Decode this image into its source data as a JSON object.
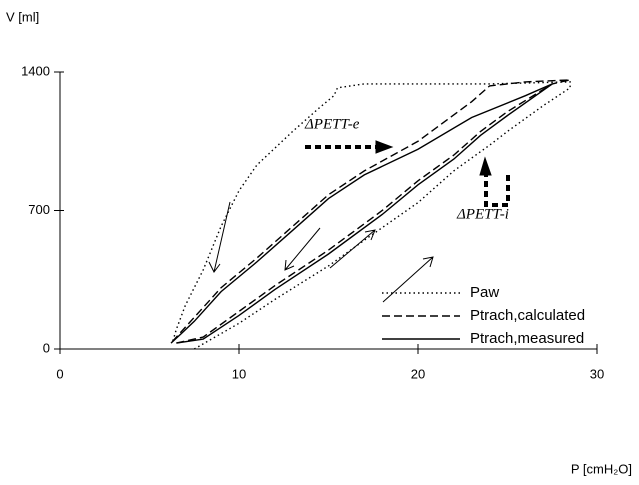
{
  "chart_data": {
    "type": "line",
    "ylabel": "V [ml]",
    "xlabel": "P [cmH₂O]",
    "xlim": [
      0,
      30
    ],
    "xticks": [
      0,
      10,
      20,
      30
    ],
    "ylim": [
      0,
      1400
    ],
    "yticks": [
      0,
      700,
      1400
    ],
    "legend": "lower right",
    "annotations": [
      "ΔPETT-e",
      "ΔPETT-i"
    ],
    "series": [
      {
        "name": "Paw",
        "style": "dotted",
        "color": "#000",
        "x": [
          7.5,
          10,
          12,
          15,
          17,
          20,
          22,
          24,
          25,
          27,
          28.5,
          28.5,
          24,
          20,
          17,
          15.5,
          15.3,
          14.5,
          13,
          11,
          10,
          9,
          8,
          7,
          6.5,
          6.3
        ],
        "values": [
          0,
          130,
          250,
          420,
          550,
          740,
          900,
          1030,
          1100,
          1230,
          1320,
          1350,
          1340,
          1340,
          1340,
          1320,
          1280,
          1220,
          1100,
          930,
          800,
          620,
          400,
          220,
          100,
          40
        ]
      },
      {
        "name": "Ptrach,calculated",
        "style": "dashed",
        "color": "#000",
        "x": [
          6.5,
          8,
          10,
          12,
          15,
          18,
          20,
          22,
          23.5,
          25,
          27.5,
          28.5,
          26,
          24,
          23,
          20,
          17,
          15,
          13,
          11,
          9,
          7.5,
          6.8,
          6.2
        ],
        "values": [
          30,
          60,
          190,
          320,
          500,
          700,
          850,
          980,
          1100,
          1200,
          1340,
          1360,
          1350,
          1330,
          1250,
          1050,
          900,
          780,
          620,
          460,
          310,
          160,
          90,
          30
        ]
      },
      {
        "name": "Ptrach,measured",
        "style": "solid",
        "color": "#000",
        "x": [
          6.5,
          8,
          10,
          12,
          15,
          18,
          20,
          22,
          23.5,
          25,
          27.5,
          26,
          23,
          20,
          17,
          15,
          13,
          11,
          9,
          7.5,
          6.8,
          6.2
        ],
        "values": [
          30,
          50,
          170,
          300,
          480,
          680,
          830,
          960,
          1080,
          1180,
          1340,
          1280,
          1170,
          1010,
          880,
          760,
          600,
          440,
          290,
          140,
          80,
          30
        ]
      }
    ]
  }
}
